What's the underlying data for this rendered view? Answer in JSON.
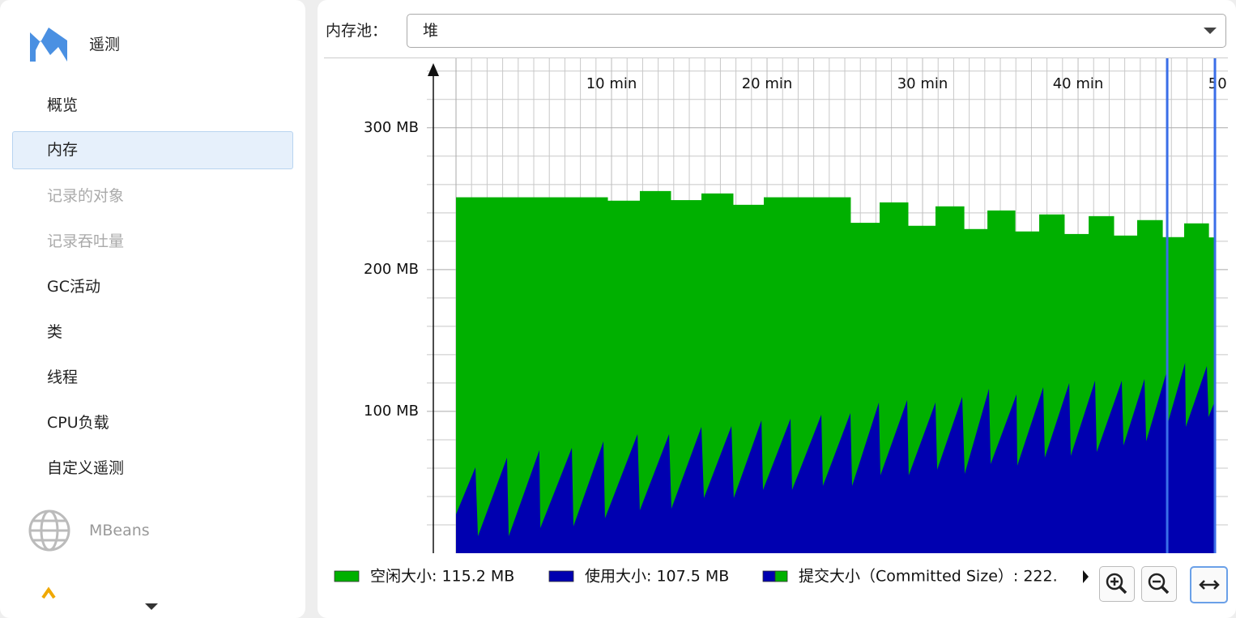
{
  "sidebar": {
    "title": "遥测",
    "items": [
      {
        "label": "概览",
        "state": "normal"
      },
      {
        "label": "内存",
        "state": "selected"
      },
      {
        "label": "记录的对象",
        "state": "disabled"
      },
      {
        "label": "记录吞吐量",
        "state": "disabled"
      },
      {
        "label": "GC活动",
        "state": "normal"
      },
      {
        "label": "类",
        "state": "normal"
      },
      {
        "label": "线程",
        "state": "normal"
      },
      {
        "label": "CPU负载",
        "state": "normal"
      },
      {
        "label": "自定义遥测",
        "state": "normal"
      }
    ],
    "mbeans": "MBeans"
  },
  "toolbar": {
    "label": "内存池：",
    "selected": "堆"
  },
  "chart_data": {
    "type": "area",
    "xlim": [
      0,
      48.8
    ],
    "ylim": [
      0,
      349
    ],
    "xticks": [
      {
        "value": 10,
        "label": "10 min"
      },
      {
        "value": 20,
        "label": "20 min"
      },
      {
        "value": 30,
        "label": "30 min"
      },
      {
        "value": 40,
        "label": "40 min"
      },
      {
        "value": 50,
        "label": "50 min"
      }
    ],
    "yticks": [
      {
        "value": 100,
        "label": "100 MB"
      },
      {
        "value": 200,
        "label": "200 MB"
      },
      {
        "value": 300,
        "label": "300 MB"
      }
    ],
    "xminor": [
      1,
      2,
      3,
      4,
      5,
      6,
      7,
      8,
      9,
      11,
      12,
      13,
      14,
      15,
      16,
      17,
      18,
      19,
      21,
      22,
      23,
      24,
      25,
      26,
      27,
      28,
      29,
      31,
      32,
      33,
      34,
      35,
      36,
      37,
      38,
      39,
      41,
      42,
      43,
      44,
      45,
      46,
      47,
      48
    ],
    "yminor": [
      20,
      40,
      60,
      80,
      120,
      140,
      160,
      180,
      220,
      240,
      260,
      280,
      320,
      340
    ],
    "grid": true,
    "series": [
      {
        "color": "#00b000",
        "step": true,
        "x": [
          0,
          9.74,
          11.82,
          13.8,
          15.78,
          17.81,
          19.79,
          25.36,
          27.24,
          29.06,
          30.83,
          32.66,
          34.17,
          35.94,
          37.5,
          39.11,
          40.68,
          42.29,
          43.8,
          45.42,
          46.82,
          48.39
        ],
        "values": [
          251,
          248.6,
          255.4,
          249,
          253.7,
          245.7,
          251,
          233,
          247.4,
          230.9,
          244.6,
          228.6,
          241.7,
          226.9,
          238.9,
          225.1,
          237.7,
          224,
          234.9,
          222.9,
          232.6,
          222.7
        ]
      },
      {
        "color": "#0000b0",
        "step": false,
        "x": [
          0,
          1.25,
          1.41,
          3.28,
          3.39,
          5.36,
          5.42,
          7.45,
          7.55,
          9.48,
          9.58,
          11.67,
          11.82,
          13.7,
          13.85,
          15.78,
          15.94,
          17.71,
          17.86,
          19.64,
          19.74,
          21.51,
          21.61,
          23.49,
          23.59,
          25.36,
          25.47,
          27.19,
          27.29,
          29.01,
          29.11,
          30.83,
          30.94,
          32.55,
          32.71,
          34.27,
          34.38,
          36.04,
          36.09,
          37.76,
          37.86,
          39.43,
          39.53,
          41.09,
          41.2,
          42.81,
          42.92,
          44.27,
          44.38,
          45.68,
          45.73,
          46.88,
          46.93,
          48.28,
          48.39,
          48.8
        ],
        "values": [
          27.4,
          60.6,
          12,
          67.4,
          12,
          72.6,
          17.7,
          74.3,
          18.9,
          78.9,
          24.6,
          84,
          30.3,
          84,
          31.4,
          89.1,
          38.9,
          89.7,
          38.9,
          93.7,
          44.6,
          94.9,
          44.6,
          97.7,
          47.4,
          98.9,
          47.4,
          106.3,
          54.9,
          108,
          54.9,
          106.3,
          58.9,
          110.3,
          56,
          116,
          62.9,
          112,
          61.7,
          117.1,
          67.4,
          120,
          68.6,
          121.7,
          71.4,
          121.7,
          76,
          122.9,
          78.9,
          127.4,
          90.3,
          134.3,
          89.1,
          132,
          96,
          107.5
        ]
      }
    ],
    "selection": [
      45.73,
      48.8
    ],
    "selection_color": "#3a6ee8"
  },
  "legend": [
    {
      "text": "空闲大小: 115.2 MB",
      "colors": [
        "#00b000"
      ]
    },
    {
      "text": "使用大小: 107.5 MB",
      "colors": [
        "#0000b0"
      ]
    },
    {
      "text": "提交大小（Committed Size）: 222.",
      "colors": [
        "#0000b0",
        "#00b000"
      ]
    }
  ]
}
